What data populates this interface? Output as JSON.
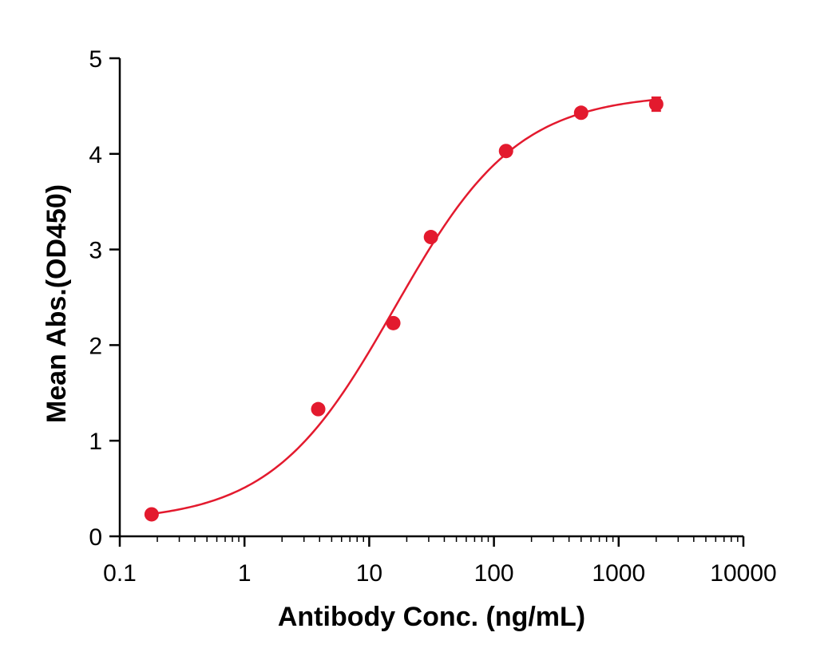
{
  "chart_data": {
    "type": "scatter",
    "title": "",
    "xlabel": "Antibody Conc. (ng/mL)",
    "ylabel": "Mean Abs.(OD450)",
    "x_scale": "log",
    "xlim": [
      0.1,
      10000
    ],
    "ylim": [
      0,
      5
    ],
    "x_ticks": [
      0.1,
      1,
      10,
      100,
      1000,
      10000
    ],
    "x_tick_labels": [
      "0.1",
      "1",
      "10",
      "100",
      "1000",
      "10000"
    ],
    "y_ticks": [
      0,
      1,
      2,
      3,
      4,
      5
    ],
    "y_tick_labels": [
      "0",
      "1",
      "2",
      "3",
      "4",
      "5"
    ],
    "grid": false,
    "legend": "none",
    "color": "#e31a2e",
    "series": [
      {
        "x": [
          0.18,
          3.9,
          15.6,
          31.25,
          125,
          500,
          2000
        ],
        "y": [
          0.23,
          1.33,
          2.23,
          3.13,
          4.03,
          4.43,
          4.52
        ],
        "error": [
          0.02,
          0.02,
          0.03,
          0.03,
          0.03,
          0.03,
          0.07
        ]
      }
    ],
    "fit": {
      "model": "4PL",
      "bottom": 0.15,
      "top": 4.63,
      "ec50": 16,
      "hill": 0.88,
      "x_range": [
        0.18,
        2000
      ]
    }
  }
}
